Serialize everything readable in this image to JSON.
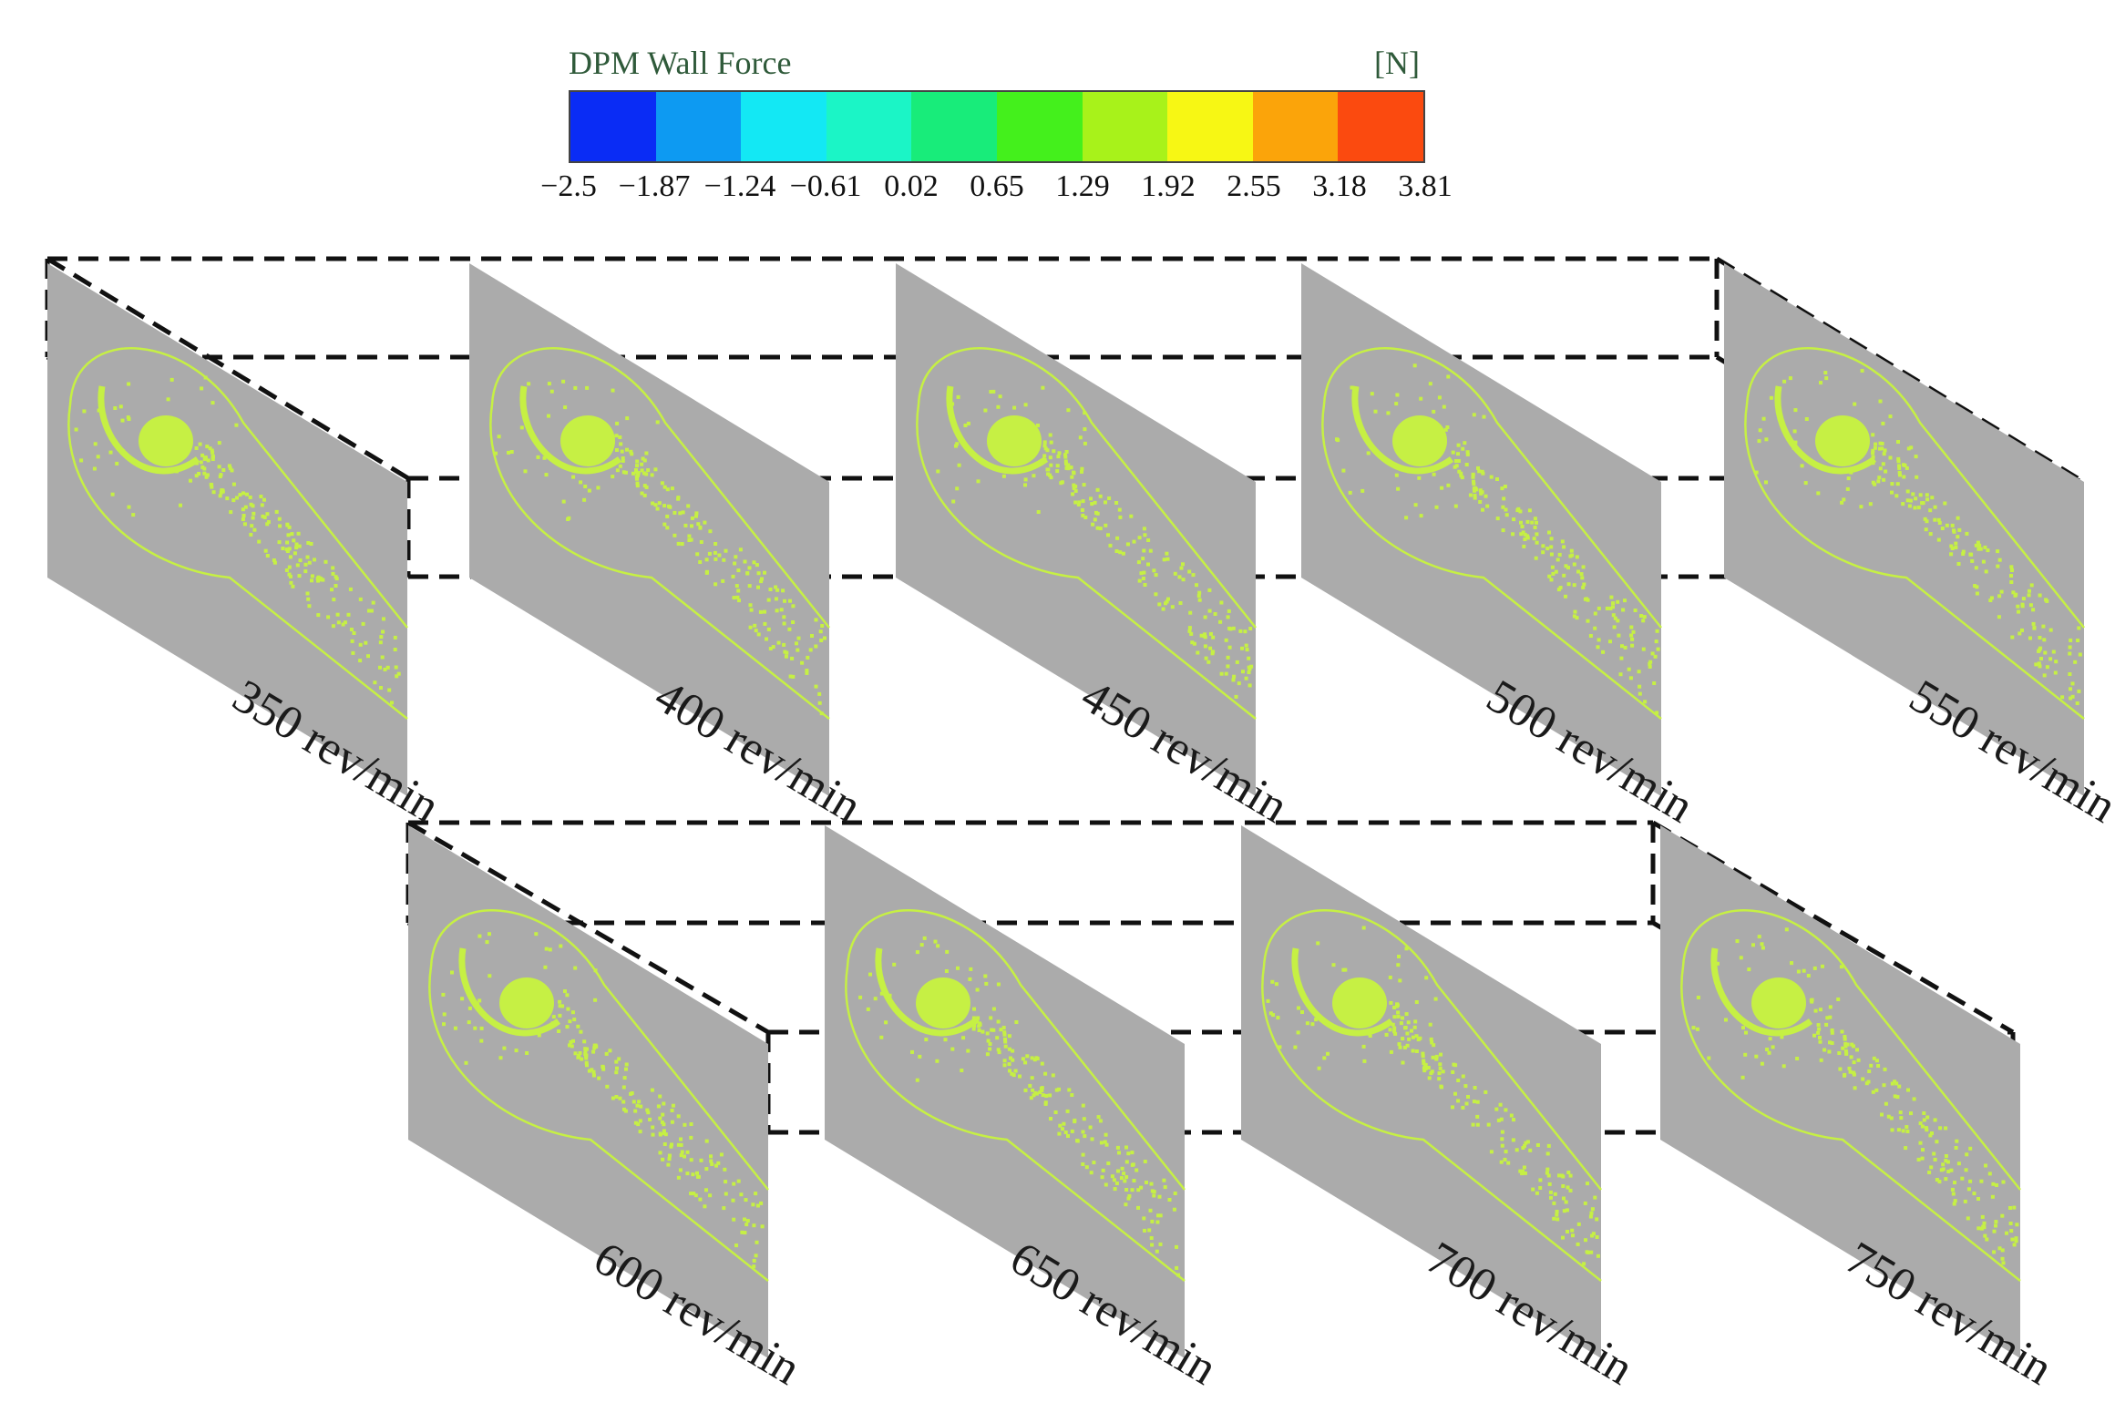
{
  "legend": {
    "title": "DPM Wall Force",
    "unit": "[N]",
    "colors": [
      "#0a2cf5",
      "#0d9af2",
      "#13e8f4",
      "#1bf5c6",
      "#18ec7a",
      "#44f01c",
      "#a8f21a",
      "#f7f714",
      "#fba40a",
      "#fb4a0f"
    ],
    "ticks": [
      "−2.5",
      "−1.87",
      "−1.24",
      "−0.61",
      "0.02",
      "0.65",
      "1.29",
      "1.92",
      "2.55",
      "3.18",
      "3.81"
    ]
  },
  "panels": [
    {
      "label": "350 rev/min"
    },
    {
      "label": "400 rev/min"
    },
    {
      "label": "450 rev/min"
    },
    {
      "label": "500 rev/min"
    },
    {
      "label": "550 rev/min"
    },
    {
      "label": "600 rev/min"
    },
    {
      "label": "650 rev/min"
    },
    {
      "label": "700 rev/min"
    },
    {
      "label": "750 rev/min"
    }
  ],
  "colors": {
    "panel_fill": "#ababab",
    "particles": "#c6f044",
    "frame": "#111111"
  }
}
